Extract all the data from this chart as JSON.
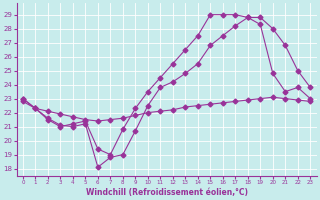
{
  "bg_color": "#c8ecec",
  "grid_color": "#ffffff",
  "line_color": "#993399",
  "xlabel": "Windchill (Refroidissement éolien,°C)",
  "ylabel_ticks": [
    18,
    19,
    20,
    21,
    22,
    23,
    24,
    25,
    26,
    27,
    28,
    29
  ],
  "xlim": [
    -0.5,
    23.5
  ],
  "ylim": [
    17.5,
    29.8
  ],
  "xticks": [
    0,
    1,
    2,
    3,
    4,
    5,
    6,
    7,
    8,
    9,
    10,
    11,
    12,
    13,
    14,
    15,
    16,
    17,
    18,
    19,
    20,
    21,
    22,
    23
  ],
  "series1_x": [
    0,
    1,
    2,
    3,
    4,
    5,
    6,
    7,
    8,
    9,
    10,
    11,
    12,
    13,
    14,
    15,
    16,
    17,
    18,
    19,
    20,
    21,
    22,
    23
  ],
  "series1_y": [
    23.0,
    22.3,
    21.6,
    21.1,
    21.0,
    21.2,
    18.1,
    18.8,
    19.0,
    20.7,
    22.5,
    23.8,
    24.2,
    24.8,
    25.5,
    26.8,
    27.5,
    28.2,
    28.8,
    28.8,
    28.0,
    26.8,
    25.0,
    23.8
  ],
  "series2_x": [
    0,
    1,
    2,
    3,
    4,
    5,
    6,
    7,
    8,
    9,
    10,
    11,
    12,
    13,
    14,
    15,
    16,
    17,
    18,
    19,
    20,
    21,
    22,
    23
  ],
  "series2_y": [
    23.0,
    22.3,
    21.5,
    21.0,
    21.2,
    21.4,
    19.4,
    19.0,
    20.8,
    22.3,
    23.5,
    24.5,
    25.5,
    26.5,
    27.5,
    29.0,
    29.0,
    29.0,
    28.8,
    28.3,
    24.8,
    23.5,
    23.8,
    23.0
  ],
  "series3_x": [
    0,
    1,
    2,
    3,
    4,
    5,
    6,
    7,
    8,
    9,
    10,
    11,
    12,
    13,
    14,
    15,
    16,
    17,
    18,
    19,
    20,
    21,
    22,
    23
  ],
  "series3_y": [
    22.8,
    22.3,
    22.1,
    21.9,
    21.7,
    21.5,
    21.4,
    21.5,
    21.6,
    21.8,
    22.0,
    22.1,
    22.2,
    22.4,
    22.5,
    22.6,
    22.7,
    22.8,
    22.9,
    23.0,
    23.1,
    23.0,
    22.9,
    22.8
  ]
}
